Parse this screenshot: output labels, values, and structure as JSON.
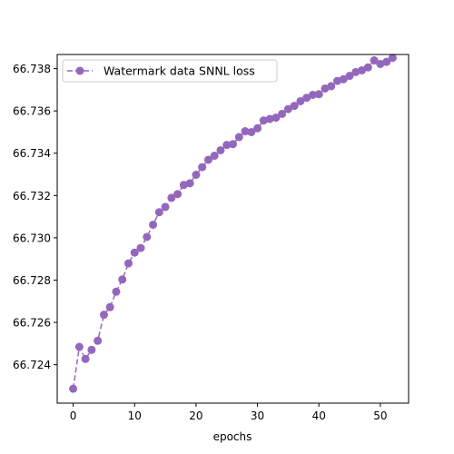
{
  "chart_data": {
    "type": "line",
    "title": "",
    "xlabel": "epochs",
    "ylabel": "",
    "xlim": [
      -2.6,
      54.6
    ],
    "ylim": [
      66.72218,
      66.73867
    ],
    "x_ticks": [
      0,
      10,
      20,
      30,
      40,
      50
    ],
    "y_ticks": [
      66.724,
      66.726,
      66.728,
      66.73,
      66.732,
      66.734,
      66.736,
      66.738
    ],
    "y_tick_labels": [
      "66.724",
      "66.726",
      "66.728",
      "66.730",
      "66.732",
      "66.734",
      "66.736",
      "66.738"
    ],
    "legend_position": "top-left",
    "grid": false,
    "series": [
      {
        "name": "Watermark data SNNL loss",
        "color": "#9467bd",
        "line_style": "dashed",
        "marker": "circle",
        "x": [
          0,
          1,
          2,
          3,
          4,
          5,
          6,
          7,
          8,
          9,
          10,
          11,
          12,
          13,
          14,
          15,
          16,
          17,
          18,
          19,
          20,
          21,
          22,
          23,
          24,
          25,
          26,
          27,
          28,
          29,
          30,
          31,
          32,
          33,
          34,
          35,
          36,
          37,
          38,
          39,
          40,
          41,
          42,
          43,
          44,
          45,
          46,
          47,
          48,
          49,
          50,
          51,
          52
        ],
        "values": [
          66.72286,
          66.72484,
          66.72427,
          66.7247,
          66.72513,
          66.72636,
          66.72672,
          66.72745,
          66.72803,
          66.72879,
          66.7293,
          66.72952,
          66.73004,
          66.73062,
          66.73121,
          66.73146,
          66.73189,
          66.73207,
          66.7325,
          66.73258,
          66.73298,
          66.73334,
          66.73369,
          66.73388,
          66.73414,
          66.73439,
          66.73443,
          66.73476,
          66.73504,
          66.735,
          66.73518,
          66.73555,
          66.73562,
          66.73568,
          66.73586,
          66.73609,
          66.73624,
          66.73646,
          66.73662,
          66.73676,
          66.73679,
          66.73706,
          66.73717,
          66.73742,
          66.7375,
          66.73766,
          66.73784,
          66.73792,
          66.73806,
          66.73839,
          66.73822,
          66.73832,
          66.73851
        ]
      }
    ]
  }
}
